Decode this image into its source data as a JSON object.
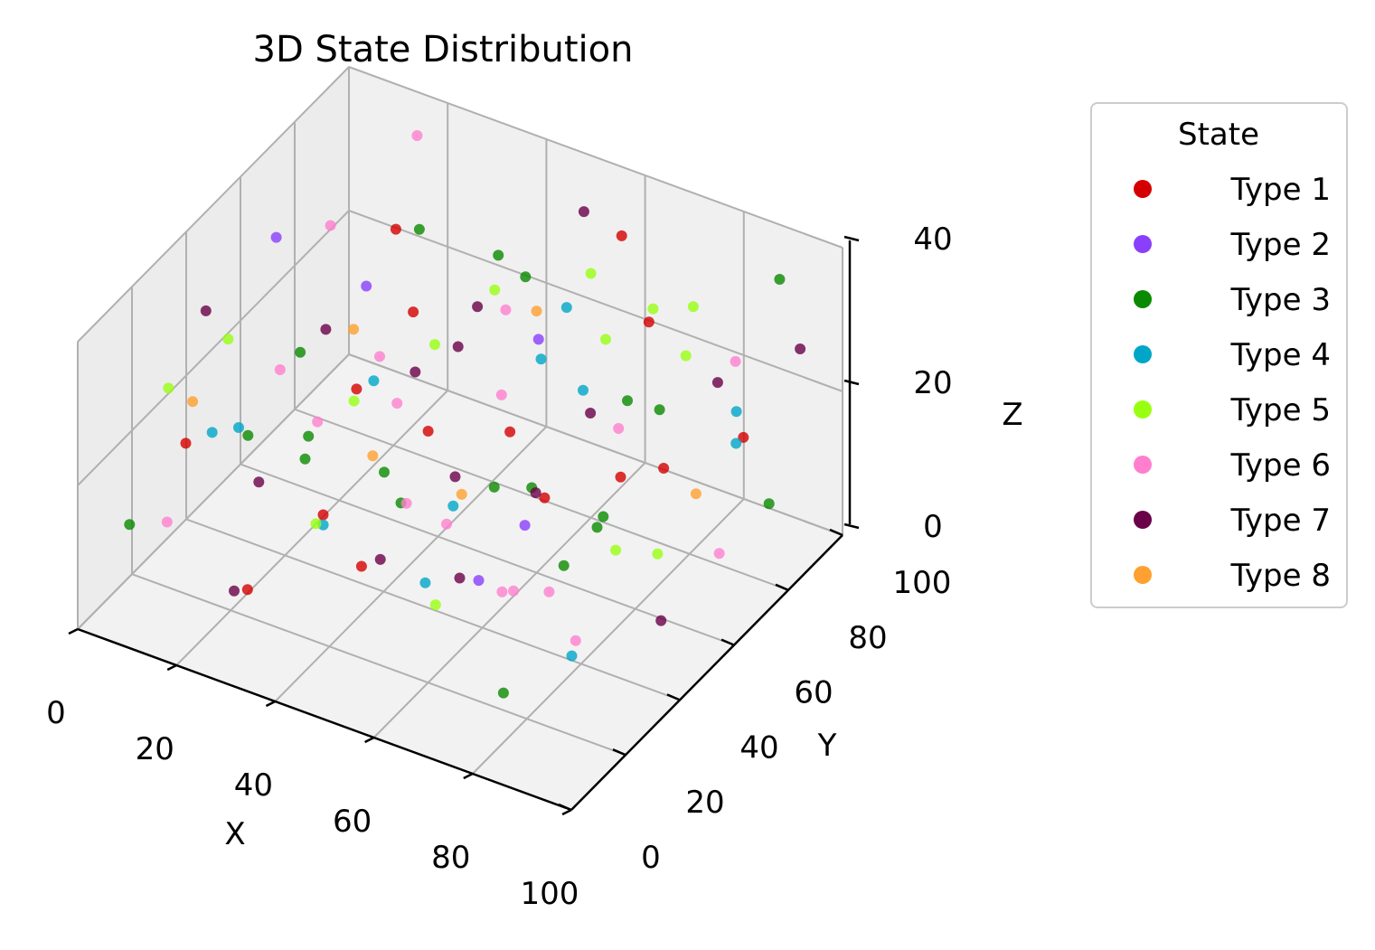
{
  "chart_data": {
    "type": "scatter",
    "projection": "3d",
    "title": "3D State Distribution",
    "xlabel": "X",
    "ylabel": "Y",
    "zlabel": "Z",
    "xlim": [
      0,
      100
    ],
    "ylim": [
      0,
      100
    ],
    "zlim": [
      0,
      40
    ],
    "xticks": [
      "0",
      "20",
      "40",
      "60",
      "80",
      "100"
    ],
    "yticks": [
      "0",
      "20",
      "40",
      "60",
      "80",
      "100"
    ],
    "zticks": [
      "0",
      "20",
      "40"
    ],
    "grid": true,
    "legend": {
      "title": "State",
      "placement": "outside-right",
      "entries": [
        {
          "label": "Type 1",
          "color": "#d40000"
        },
        {
          "label": "Type 2",
          "color": "#8a3ffc"
        },
        {
          "label": "Type 3",
          "color": "#0a8a00"
        },
        {
          "label": "Type 4",
          "color": "#00a6c8"
        },
        {
          "label": "Type 5",
          "color": "#99ff11"
        },
        {
          "label": "Type 6",
          "color": "#ff7fce"
        },
        {
          "label": "Type 7",
          "color": "#6a0048"
        },
        {
          "label": "Type 8",
          "color": "#ffa030"
        }
      ]
    },
    "series": [
      {
        "name": "Type 1",
        "color": "#d40000",
        "points": [
          [
            12,
            18,
            22
          ],
          [
            35,
            60,
            30
          ],
          [
            48,
            72,
            12
          ],
          [
            60,
            20,
            35
          ],
          [
            72,
            85,
            8
          ],
          [
            88,
            40,
            28
          ],
          [
            25,
            45,
            5
          ],
          [
            52,
            10,
            18
          ],
          [
            80,
            65,
            38
          ],
          [
            15,
            90,
            25
          ],
          [
            40,
            30,
            32
          ],
          [
            66,
            52,
            15
          ],
          [
            92,
            78,
            20
          ],
          [
            30,
            8,
            10
          ],
          [
            58,
            95,
            33
          ]
        ]
      },
      {
        "name": "Type 2",
        "color": "#8a3ffc",
        "points": [
          [
            20,
            70,
            26
          ],
          [
            62,
            35,
            9
          ],
          [
            84,
            12,
            31
          ],
          [
            45,
            88,
            18
          ],
          [
            10,
            55,
            36
          ]
        ]
      },
      {
        "name": "Type 3",
        "color": "#0a8a00",
        "points": [
          [
            5,
            10,
            12
          ],
          [
            18,
            30,
            20
          ],
          [
            28,
            75,
            34
          ],
          [
            38,
            50,
            8
          ],
          [
            50,
            22,
            26
          ],
          [
            55,
            65,
            38
          ],
          [
            63,
            88,
            14
          ],
          [
            70,
            40,
            22
          ],
          [
            78,
            15,
            5
          ],
          [
            86,
            58,
            30
          ],
          [
            95,
            82,
            10
          ],
          [
            12,
            62,
            3
          ],
          [
            33,
            95,
            24
          ],
          [
            44,
            5,
            36
          ],
          [
            58,
            48,
            16
          ],
          [
            68,
            70,
            6
          ],
          [
            82,
            30,
            18
          ],
          [
            90,
            95,
            35
          ],
          [
            22,
            42,
            28
          ],
          [
            75,
            55,
            12
          ]
        ]
      },
      {
        "name": "Type 4",
        "color": "#00a6c8",
        "points": [
          [
            8,
            35,
            16
          ],
          [
            26,
            12,
            30
          ],
          [
            42,
            62,
            4
          ],
          [
            54,
            82,
            27
          ],
          [
            66,
            8,
            20
          ],
          [
            76,
            48,
            34
          ],
          [
            88,
            22,
            10
          ],
          [
            96,
            68,
            24
          ],
          [
            16,
            80,
            8
          ],
          [
            36,
            25,
            14
          ],
          [
            62,
            58,
            31
          ],
          [
            84,
            90,
            17
          ]
        ]
      },
      {
        "name": "Type 5",
        "color": "#99ff11",
        "points": [
          [
            3,
            50,
            22
          ],
          [
            14,
            8,
            34
          ],
          [
            24,
            88,
            12
          ],
          [
            34,
            40,
            25
          ],
          [
            46,
            70,
            32
          ],
          [
            56,
            30,
            6
          ],
          [
            66,
            92,
            26
          ],
          [
            74,
            60,
            36
          ],
          [
            82,
            75,
            30
          ],
          [
            90,
            50,
            14
          ],
          [
            98,
            20,
            28
          ],
          [
            40,
            15,
            19
          ],
          [
            60,
            80,
            34
          ],
          [
            78,
            85,
            32
          ]
        ]
      },
      {
        "name": "Type 6",
        "color": "#ff7fce",
        "points": [
          [
            6,
            22,
            8
          ],
          [
            10,
            75,
            30
          ],
          [
            20,
            52,
            14
          ],
          [
            30,
            20,
            36
          ],
          [
            40,
            85,
            22
          ],
          [
            50,
            45,
            10
          ],
          [
            60,
            12,
            28
          ],
          [
            70,
            72,
            18
          ],
          [
            80,
            38,
            4
          ],
          [
            90,
            10,
            24
          ],
          [
            97,
            60,
            12
          ],
          [
            26,
            64,
            20
          ],
          [
            46,
            34,
            30
          ],
          [
            64,
            40,
            6
          ],
          [
            86,
            86,
            26
          ],
          [
            16,
            96,
            36
          ],
          [
            54,
            58,
            24
          ],
          [
            74,
            26,
            14
          ]
        ]
      },
      {
        "name": "Type 7",
        "color": "#6a0048",
        "points": [
          [
            4,
            40,
            30
          ],
          [
            14,
            66,
            20
          ],
          [
            24,
            14,
            6
          ],
          [
            32,
            82,
            16
          ],
          [
            42,
            48,
            28
          ],
          [
            52,
            92,
            36
          ],
          [
            62,
            28,
            12
          ],
          [
            72,
            58,
            26
          ],
          [
            84,
            16,
            34
          ],
          [
            94,
            44,
            8
          ],
          [
            18,
            34,
            12
          ],
          [
            38,
            70,
            4
          ],
          [
            58,
            6,
            22
          ],
          [
            78,
            94,
            18
          ],
          [
            98,
            88,
            30
          ],
          [
            48,
            60,
            34
          ]
        ]
      },
      {
        "name": "Type 8",
        "color": "#ffa030",
        "points": [
          [
            9,
            26,
            24
          ],
          [
            29,
            56,
            10
          ],
          [
            49,
            80,
            26
          ],
          [
            69,
            16,
            30
          ],
          [
            89,
            66,
            16
          ],
          [
            35,
            38,
            36
          ]
        ]
      }
    ]
  }
}
